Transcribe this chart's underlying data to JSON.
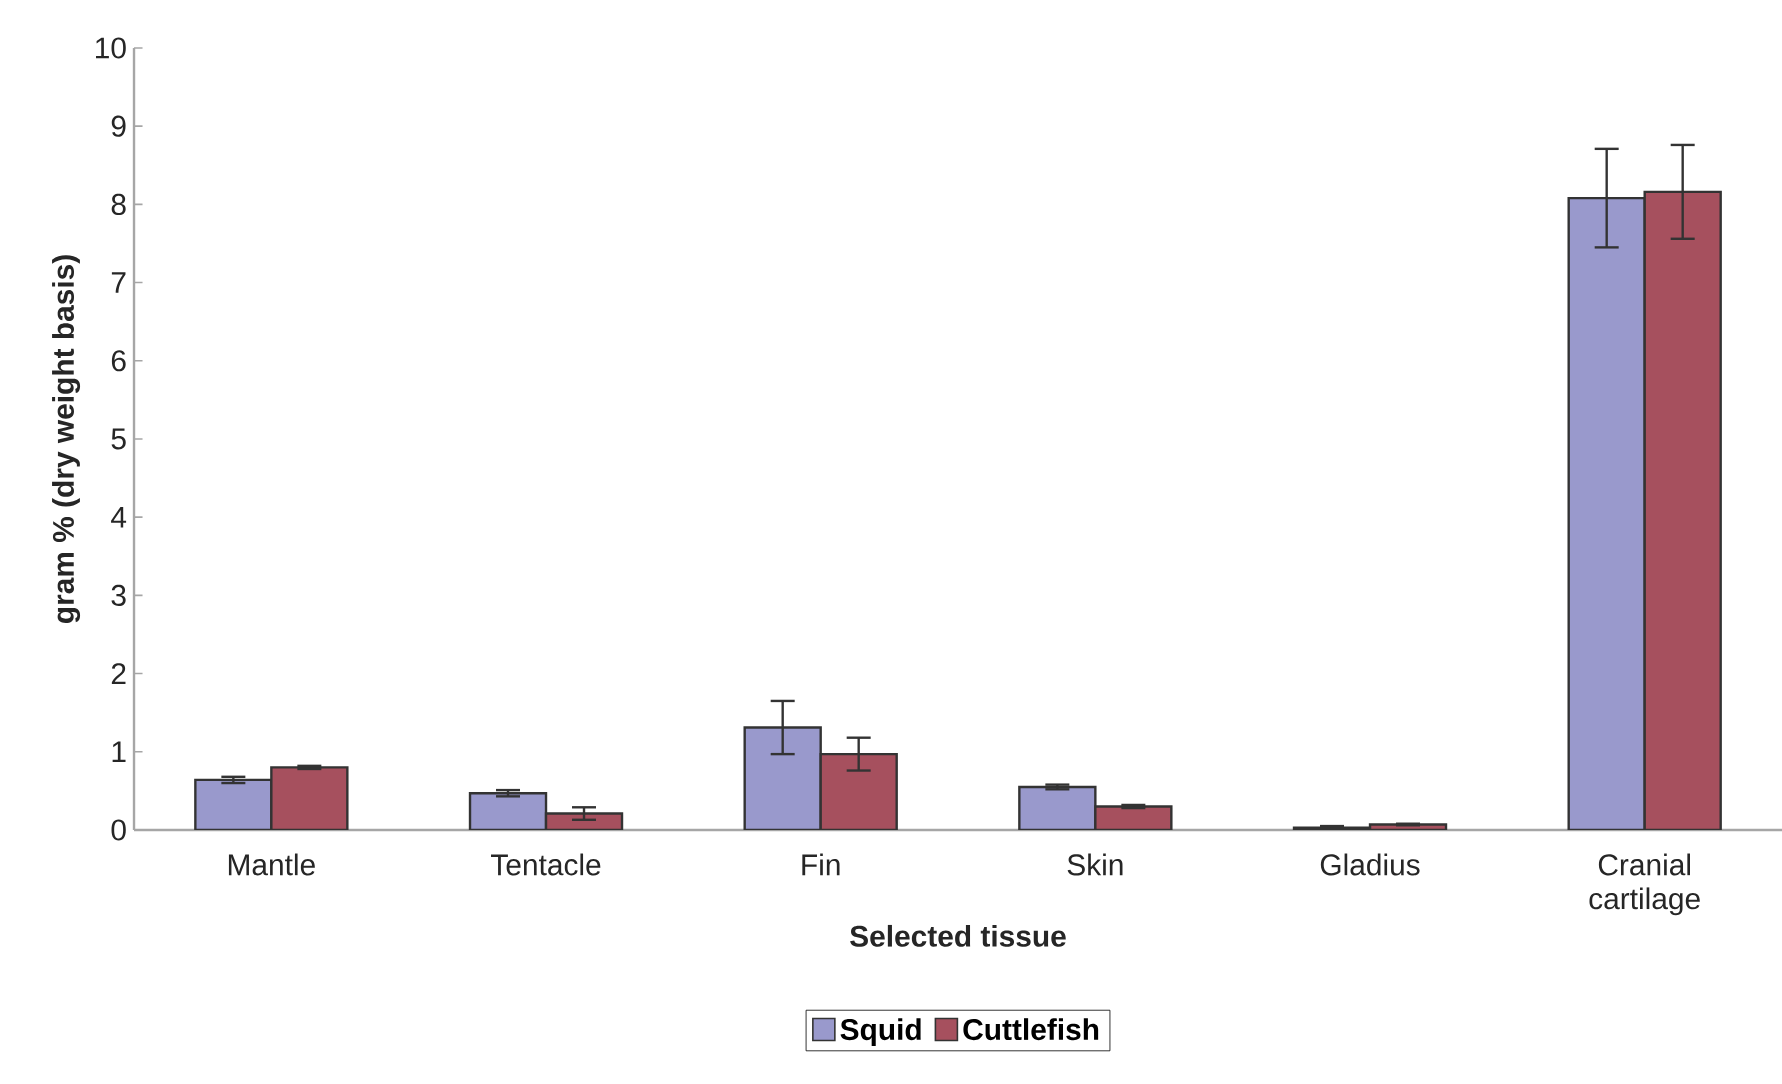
{
  "chart_data": {
    "type": "bar",
    "xlabel": "Selected tissue",
    "ylabel": "gram %  (dry weight basis)",
    "categories": [
      "Mantle",
      "Tentacle",
      "Fin",
      "Skin",
      "Gladius",
      "Cranial cartilage"
    ],
    "series": [
      {
        "name": "Squid",
        "color": "#9999cc",
        "values": [
          0.64,
          0.47,
          1.31,
          0.55,
          0.03,
          8.08
        ],
        "errors": [
          0.04,
          0.04,
          0.34,
          0.03,
          0.02,
          0.63
        ]
      },
      {
        "name": "Cuttlefish",
        "color": "#a6505e",
        "values": [
          0.8,
          0.21,
          0.97,
          0.3,
          0.07,
          8.16
        ],
        "errors": [
          0.02,
          0.08,
          0.21,
          0.02,
          0.01,
          0.6
        ]
      }
    ],
    "ylim": [
      0,
      10
    ],
    "yticks": [
      0,
      1,
      2,
      3,
      4,
      5,
      6,
      7,
      8,
      9,
      10
    ],
    "grid": false,
    "legend": "bottom"
  }
}
